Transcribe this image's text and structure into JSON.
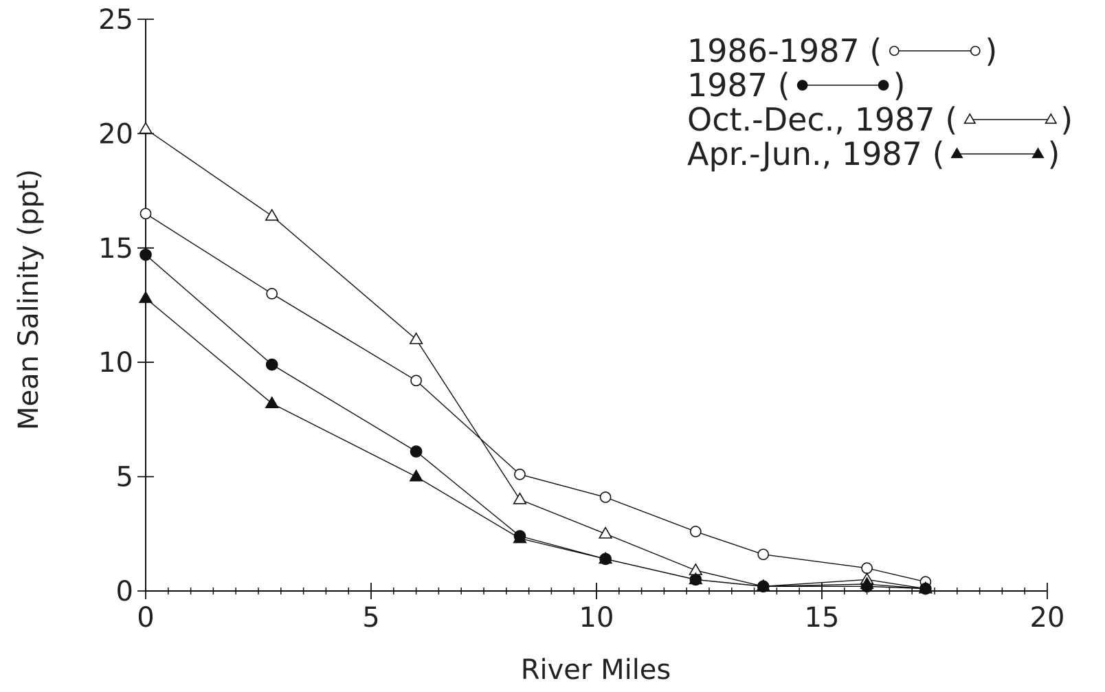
{
  "chart_data": {
    "type": "line",
    "title": "",
    "xlabel": "River Miles",
    "ylabel": "Mean Salinity (ppt)",
    "xlim": [
      0,
      20
    ],
    "ylim": [
      0,
      25
    ],
    "x_ticks": [
      0,
      5,
      10,
      15,
      20
    ],
    "y_ticks": [
      0,
      5,
      10,
      15,
      20,
      25
    ],
    "x_tick_labels": [
      "0",
      "5",
      "10",
      "15",
      "20"
    ],
    "y_tick_labels": [
      "0",
      "5",
      "10",
      "15",
      "20",
      "25"
    ],
    "x_minor_tick_step": 0.5,
    "grid": false,
    "legend_position": "top-right",
    "series": [
      {
        "name": "1986-1987",
        "legend_label": "1986-1987 (",
        "legend_close": ")",
        "marker": "open-circle",
        "points": [
          [
            0,
            16.5
          ],
          [
            2.8,
            13.0
          ],
          [
            6.0,
            9.2
          ],
          [
            8.3,
            5.1
          ],
          [
            10.2,
            4.1
          ],
          [
            12.2,
            2.6
          ],
          [
            13.7,
            1.6
          ],
          [
            16.0,
            1.0
          ],
          [
            17.3,
            0.4
          ]
        ]
      },
      {
        "name": "1987",
        "legend_label": "1987 (",
        "legend_close": ")",
        "marker": "filled-circle",
        "points": [
          [
            0,
            14.7
          ],
          [
            2.8,
            9.9
          ],
          [
            6.0,
            6.1
          ],
          [
            8.3,
            2.4
          ],
          [
            10.2,
            1.4
          ],
          [
            12.2,
            0.5
          ],
          [
            13.7,
            0.2
          ],
          [
            16.0,
            0.2
          ],
          [
            17.3,
            0.1
          ]
        ]
      },
      {
        "name": "Oct.-Dec., 1987",
        "legend_label": "Oct.-Dec., 1987 (",
        "legend_close": ")",
        "marker": "open-triangle",
        "points": [
          [
            0,
            20.2
          ],
          [
            2.8,
            16.4
          ],
          [
            6.0,
            11.0
          ],
          [
            8.3,
            4.0
          ],
          [
            10.2,
            2.5
          ],
          [
            12.2,
            0.9
          ],
          [
            13.7,
            0.2
          ],
          [
            16.0,
            0.5
          ],
          [
            17.3,
            0.1
          ]
        ]
      },
      {
        "name": "Apr.-Jun., 1987",
        "legend_label": "Apr.-Jun., 1987 (",
        "legend_close": ")",
        "marker": "filled-triangle",
        "points": [
          [
            0,
            12.8
          ],
          [
            2.8,
            8.2
          ],
          [
            6.0,
            5.0
          ],
          [
            8.3,
            2.3
          ],
          [
            10.2,
            1.4
          ],
          [
            12.2,
            0.5
          ],
          [
            13.7,
            0.2
          ],
          [
            16.0,
            0.3
          ],
          [
            17.3,
            0.1
          ]
        ]
      }
    ]
  },
  "colors": {
    "ink": "#111111",
    "background": "#ffffff"
  }
}
